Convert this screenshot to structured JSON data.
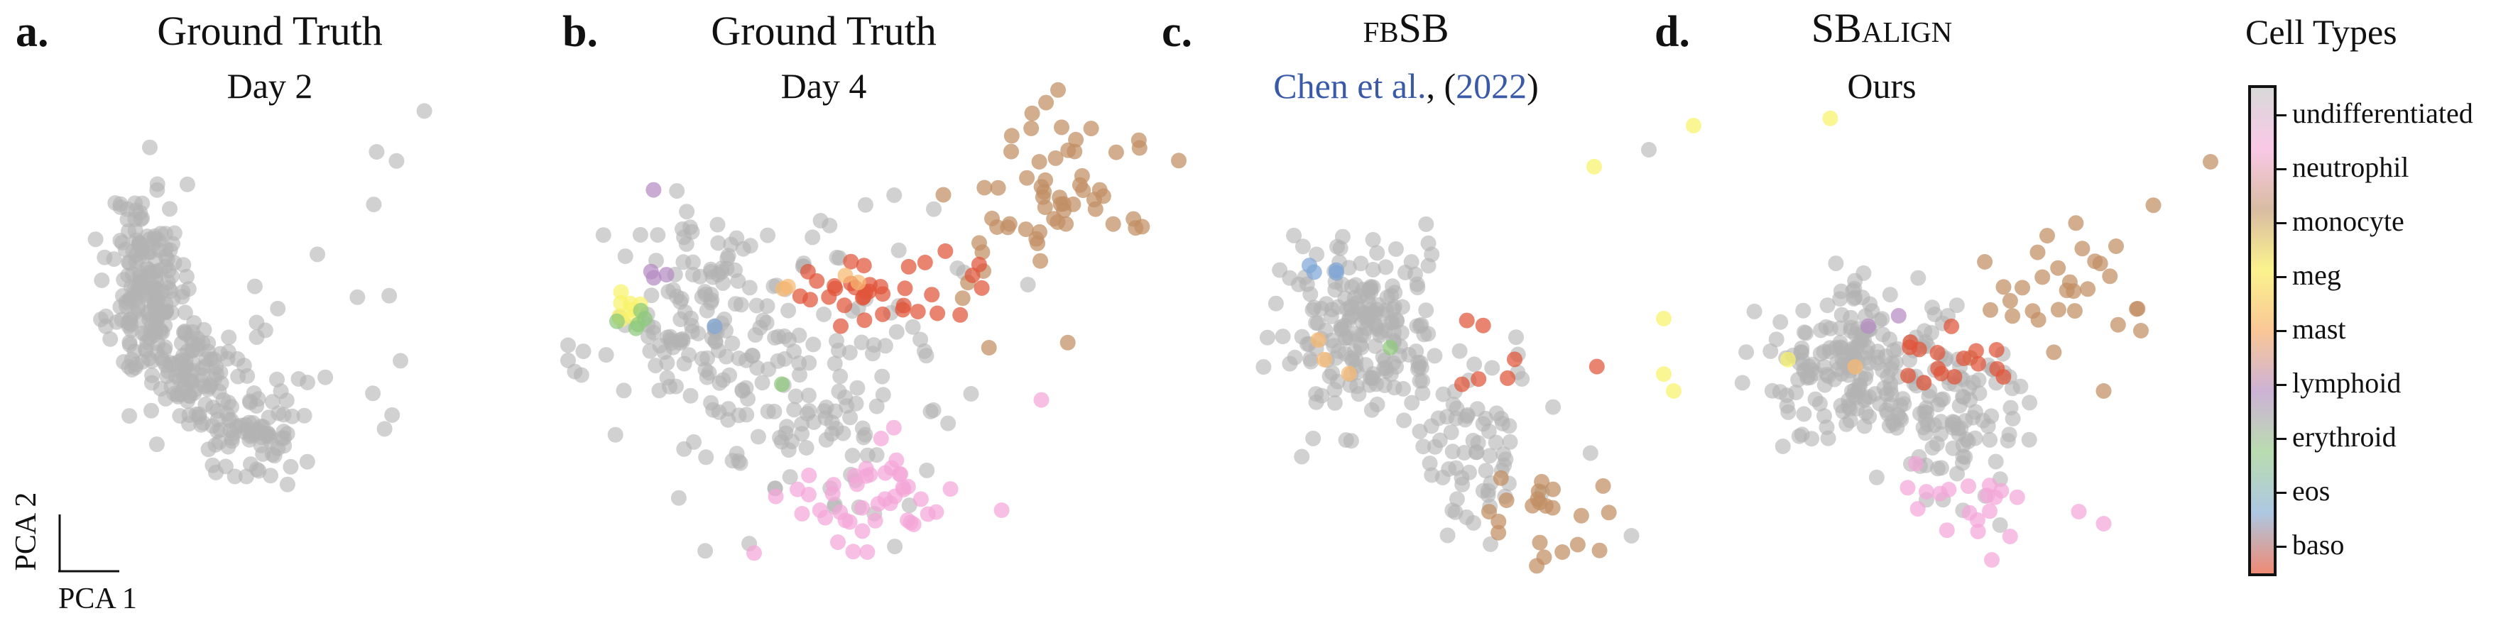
{
  "panels": [
    {
      "letter": "a.",
      "title": "Ground Truth",
      "subtitle": "Day 2"
    },
    {
      "letter": "b.",
      "title": "Ground Truth",
      "subtitle": "Day 4"
    },
    {
      "letter": "c.",
      "title": "fbSB",
      "subtitle_prefix": "Chen et al.",
      "subtitle_mid": ", (",
      "subtitle_year": "2022",
      "subtitle_suffix": ")"
    },
    {
      "letter": "d.",
      "title": "SBalign",
      "subtitle": "Ours"
    }
  ],
  "axes": {
    "x": "PCA 1",
    "y": "PCA 2"
  },
  "colors": {
    "undifferentiated": "#b3b3b3",
    "neutrophil": "#f4a6d8",
    "monocyte": "#c18f64",
    "meg": "#f8f36a",
    "mast": "#f8b870",
    "lymphoid": "#b68ac4",
    "erythroid": "#8ec97b",
    "eos": "#7fa6d6",
    "baso": "#e0553a",
    "citation": "#3a5aa8"
  },
  "legend": {
    "title": "Cell Types",
    "entries": [
      "undifferentiated",
      "neutrophil",
      "monocyte",
      "meg",
      "mast",
      "lymphoid",
      "erythroid",
      "eos",
      "baso"
    ],
    "gradient": [
      "#d9d9d9",
      "#f9c8e6",
      "#d8bca2",
      "#fbf38e",
      "#f9c796",
      "#cdb2d6",
      "#b9dcb0",
      "#adc8e2",
      "#ef8a74"
    ]
  },
  "chart_data": [
    {
      "type": "scatter",
      "panel": "a",
      "xlim": [
        -1,
        1
      ],
      "ylim": [
        -1,
        1
      ],
      "clusters": [
        {
          "cell_type": "undifferentiated",
          "cx": -0.48,
          "cy": 0.22,
          "sx": 0.09,
          "sy": 0.22,
          "n": 170,
          "seed": 11
        },
        {
          "cell_type": "undifferentiated",
          "cx": -0.22,
          "cy": -0.18,
          "sx": 0.14,
          "sy": 0.14,
          "n": 110,
          "seed": 12
        },
        {
          "cell_type": "undifferentiated",
          "cx": 0.05,
          "cy": -0.45,
          "sx": 0.12,
          "sy": 0.09,
          "n": 70,
          "seed": 13
        },
        {
          "cell_type": "undifferentiated",
          "cx": 0.55,
          "cy": 0.05,
          "sx": 0.3,
          "sy": 0.3,
          "n": 14,
          "seed": 14
        }
      ],
      "points": [
        {
          "x": 0.92,
          "y": 0.98,
          "cell_type": "undifferentiated"
        },
        {
          "x": 0.68,
          "y": 0.8,
          "cell_type": "undifferentiated"
        },
        {
          "x": 0.78,
          "y": 0.76,
          "cell_type": "undifferentiated"
        },
        {
          "x": 0.8,
          "y": -0.12,
          "cell_type": "undifferentiated"
        },
        {
          "x": 0.72,
          "y": -0.42,
          "cell_type": "undifferentiated"
        }
      ]
    },
    {
      "type": "scatter",
      "panel": "b",
      "xlim": [
        -1,
        1
      ],
      "ylim": [
        -1,
        1
      ],
      "clusters": [
        {
          "cell_type": "undifferentiated",
          "cx": -0.55,
          "cy": 0.0,
          "sx": 0.16,
          "sy": 0.2,
          "n": 130,
          "seed": 21
        },
        {
          "cell_type": "undifferentiated",
          "cx": -0.25,
          "cy": -0.35,
          "sx": 0.2,
          "sy": 0.18,
          "n": 90,
          "seed": 22
        },
        {
          "cell_type": "undifferentiated",
          "cx": 0.0,
          "cy": 0.05,
          "sx": 0.22,
          "sy": 0.18,
          "n": 40,
          "seed": 23
        },
        {
          "cell_type": "monocyte",
          "cx": 0.55,
          "cy": 0.45,
          "sx": 0.16,
          "sy": 0.22,
          "n": 60,
          "seed": 24
        },
        {
          "cell_type": "baso",
          "cx": 0.05,
          "cy": 0.12,
          "sx": 0.16,
          "sy": 0.06,
          "n": 35,
          "seed": 25
        },
        {
          "cell_type": "neutrophil",
          "cx": 0.0,
          "cy": -0.62,
          "sx": 0.16,
          "sy": 0.12,
          "n": 45,
          "seed": 26
        },
        {
          "cell_type": "meg",
          "cx": -0.82,
          "cy": 0.07,
          "sx": 0.05,
          "sy": 0.04,
          "n": 8,
          "seed": 27
        },
        {
          "cell_type": "erythroid",
          "cx": -0.77,
          "cy": 0.03,
          "sx": 0.03,
          "sy": 0.03,
          "n": 5,
          "seed": 28
        },
        {
          "cell_type": "lymphoid",
          "cx": -0.72,
          "cy": 0.2,
          "sx": 0.03,
          "sy": 0.06,
          "n": 3,
          "seed": 29
        },
        {
          "cell_type": "mast",
          "cx": -0.25,
          "cy": 0.16,
          "sx": 0.12,
          "sy": 0.03,
          "n": 4,
          "seed": 30
        }
      ],
      "points": [
        {
          "x": -0.72,
          "y": 0.52,
          "cell_type": "lymphoid"
        },
        {
          "x": -0.52,
          "y": 0.0,
          "cell_type": "eos"
        },
        {
          "x": -0.3,
          "y": -0.22,
          "cell_type": "erythroid"
        },
        {
          "x": 0.88,
          "y": 0.38,
          "cell_type": "monocyte"
        },
        {
          "x": 0.55,
          "y": -0.28,
          "cell_type": "neutrophil"
        },
        {
          "x": 0.42,
          "y": -0.7,
          "cell_type": "neutrophil"
        }
      ]
    },
    {
      "type": "scatter",
      "panel": "c",
      "xlim": [
        -1,
        1
      ],
      "ylim": [
        -1,
        1
      ],
      "clusters": [
        {
          "cell_type": "undifferentiated",
          "cx": -0.45,
          "cy": 0.1,
          "sx": 0.17,
          "sy": 0.18,
          "n": 190,
          "seed": 31
        },
        {
          "cell_type": "undifferentiated",
          "cx": 0.0,
          "cy": -0.35,
          "sx": 0.18,
          "sy": 0.18,
          "n": 75,
          "seed": 32
        },
        {
          "cell_type": "monocyte",
          "cx": 0.3,
          "cy": -0.7,
          "sx": 0.12,
          "sy": 0.1,
          "n": 22,
          "seed": 33
        },
        {
          "cell_type": "baso",
          "cx": 0.15,
          "cy": -0.05,
          "sx": 0.15,
          "sy": 0.1,
          "n": 7,
          "seed": 34
        },
        {
          "cell_type": "eos",
          "cx": -0.55,
          "cy": 0.35,
          "sx": 0.06,
          "sy": 0.03,
          "n": 4,
          "seed": 35
        },
        {
          "cell_type": "mast",
          "cx": -0.45,
          "cy": 0.0,
          "sx": 0.1,
          "sy": 0.05,
          "n": 3,
          "seed": 36
        }
      ],
      "points": [
        {
          "x": 0.9,
          "y": 0.95,
          "cell_type": "meg"
        },
        {
          "x": 0.72,
          "y": 0.85,
          "cell_type": "undifferentiated"
        },
        {
          "x": 0.5,
          "y": 0.78,
          "cell_type": "meg"
        },
        {
          "x": 0.78,
          "y": 0.15,
          "cell_type": "meg"
        },
        {
          "x": 0.78,
          "y": -0.08,
          "cell_type": "meg"
        },
        {
          "x": 0.82,
          "y": -0.15,
          "cell_type": "meg"
        },
        {
          "x": -0.32,
          "y": 0.03,
          "cell_type": "erythroid"
        },
        {
          "x": 0.65,
          "y": -0.75,
          "cell_type": "undifferentiated"
        }
      ]
    },
    {
      "type": "scatter",
      "panel": "d",
      "xlim": [
        -1,
        1
      ],
      "ylim": [
        -1,
        1
      ],
      "clusters": [
        {
          "cell_type": "undifferentiated",
          "cx": -0.42,
          "cy": -0.05,
          "sx": 0.2,
          "sy": 0.16,
          "n": 200,
          "seed": 41
        },
        {
          "cell_type": "undifferentiated",
          "cx": -0.05,
          "cy": -0.25,
          "sx": 0.16,
          "sy": 0.17,
          "n": 80,
          "seed": 42
        },
        {
          "cell_type": "monocyte",
          "cx": 0.3,
          "cy": 0.28,
          "sx": 0.18,
          "sy": 0.16,
          "n": 28,
          "seed": 43
        },
        {
          "cell_type": "baso",
          "cx": -0.08,
          "cy": -0.05,
          "sx": 0.18,
          "sy": 0.07,
          "n": 16,
          "seed": 44
        },
        {
          "cell_type": "neutrophil",
          "cx": -0.05,
          "cy": -0.6,
          "sx": 0.14,
          "sy": 0.08,
          "n": 18,
          "seed": 45
        },
        {
          "cell_type": "lymphoid",
          "cx": -0.35,
          "cy": 0.15,
          "sx": 0.03,
          "sy": 0.03,
          "n": 2,
          "seed": 46
        }
      ],
      "points": [
        {
          "x": 0.98,
          "y": 0.8,
          "cell_type": "monocyte"
        },
        {
          "x": 0.75,
          "y": 0.62,
          "cell_type": "monocyte"
        },
        {
          "x": 0.6,
          "y": 0.45,
          "cell_type": "monocyte"
        },
        {
          "x": 0.7,
          "y": 0.1,
          "cell_type": "monocyte"
        },
        {
          "x": 0.55,
          "y": -0.15,
          "cell_type": "monocyte"
        },
        {
          "x": -0.72,
          "y": -0.02,
          "cell_type": "meg"
        },
        {
          "x": -0.55,
          "y": 0.98,
          "cell_type": "meg"
        },
        {
          "x": -0.45,
          "y": -0.05,
          "cell_type": "mast"
        },
        {
          "x": 0.45,
          "y": -0.65,
          "cell_type": "neutrophil"
        },
        {
          "x": 0.55,
          "y": -0.7,
          "cell_type": "neutrophil"
        },
        {
          "x": 0.1,
          "y": -0.85,
          "cell_type": "neutrophil"
        }
      ]
    }
  ]
}
